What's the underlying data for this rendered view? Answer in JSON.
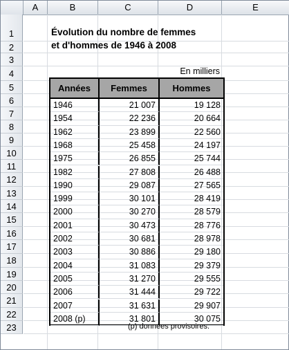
{
  "columns": [
    "A",
    "B",
    "C",
    "D",
    "E"
  ],
  "rows": [
    "1",
    "2",
    "3",
    "4",
    "5",
    "6",
    "7",
    "8",
    "9",
    "10",
    "11",
    "12",
    "13",
    "14",
    "15",
    "16",
    "17",
    "18",
    "19",
    "20",
    "21",
    "22",
    "23"
  ],
  "title": "Évolution du nombre de femmes\net d'hommes de 1946 à 2008",
  "unit_label": "En milliers",
  "table": {
    "headers": [
      "Années",
      "Femmes",
      "Hommes"
    ],
    "rows": [
      [
        "1946",
        "21 007",
        "19 128"
      ],
      [
        "1954",
        "22 236",
        "20 664"
      ],
      [
        "1962",
        "23 899",
        "22 560"
      ],
      [
        "1968",
        "25 458",
        "24 197"
      ],
      [
        "1975",
        "26 855",
        "25 744"
      ],
      [
        "1982",
        "27 808",
        "26 488"
      ],
      [
        "1990",
        "29 087",
        "27 565"
      ],
      [
        "1999",
        "30 101",
        "28 419"
      ],
      [
        "2000",
        "30 270",
        "28 579"
      ],
      [
        "2001",
        "30 473",
        "28 776"
      ],
      [
        "2002",
        "30 681",
        "28 978"
      ],
      [
        "2003",
        "30 886",
        "29 180"
      ],
      [
        "2004",
        "31 083",
        "29 379"
      ],
      [
        "2005",
        "31 270",
        "29 555"
      ],
      [
        "2006",
        "31 444",
        "29 722"
      ],
      [
        "2007",
        "31 631",
        "29 907"
      ],
      [
        "2008 (p)",
        "31 801",
        "30 075"
      ]
    ]
  },
  "note": "(p) données provisoires."
}
